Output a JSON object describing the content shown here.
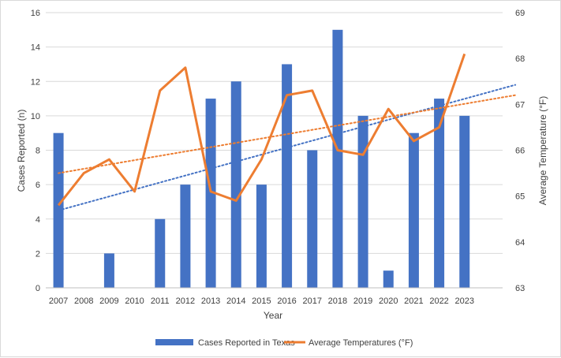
{
  "chart_data": {
    "type": "bar",
    "categories": [
      "2007",
      "2008",
      "2009",
      "2010",
      "2011",
      "2012",
      "2013",
      "2014",
      "2015",
      "2016",
      "2017",
      "2018",
      "2019",
      "2020",
      "2021",
      "2022",
      "2023"
    ],
    "series": [
      {
        "name": "Cases Reported in Texas",
        "type": "bar",
        "axis": "left",
        "color": "#4472C4",
        "values": [
          9,
          0,
          2,
          0,
          4,
          6,
          11,
          12,
          6,
          13,
          8,
          15,
          10,
          1,
          9,
          11,
          10
        ]
      },
      {
        "name": "Average Temperatures (°F)",
        "type": "line",
        "axis": "right",
        "color": "#ED7D31",
        "values": [
          64.8,
          65.5,
          65.8,
          65.1,
          67.3,
          67.8,
          65.1,
          64.9,
          65.8,
          67.2,
          67.3,
          66.0,
          65.9,
          66.9,
          66.2,
          66.5,
          68.1
        ]
      }
    ],
    "trendlines": [
      {
        "of_series": "Cases Reported in Texas",
        "type": "linear",
        "color": "#4472C4",
        "style": "dotted",
        "from": {
          "x": "2007",
          "y": 4.5
        },
        "to_year": 2025,
        "to_value": 11.8
      },
      {
        "of_series": "Average Temperatures (°F)",
        "type": "linear",
        "color": "#ED7D31",
        "style": "dotted",
        "from": {
          "x": "2007",
          "y": 65.5
        },
        "to_year": 2025,
        "to_value": 67.2
      }
    ],
    "xlabel": "Year",
    "ylabel": "Cases Reported (n)",
    "y2label": "Average Temperature (°F)",
    "ylim": [
      0,
      16
    ],
    "y2lim": [
      63,
      69
    ],
    "yticks": [
      0,
      2,
      4,
      6,
      8,
      10,
      12,
      14,
      16
    ],
    "y2ticks": [
      63,
      64,
      65,
      66,
      67,
      68,
      69
    ],
    "grid": true,
    "legend_position": "bottom"
  }
}
